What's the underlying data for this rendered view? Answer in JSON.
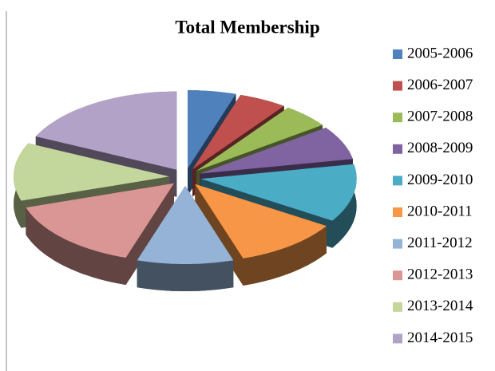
{
  "chart_data": {
    "type": "pie",
    "title": "Total Membership",
    "categories": [
      "2005-2006",
      "2006-2007",
      "2007-2008",
      "2008-2009",
      "2009-2010",
      "2010-2011",
      "2011-2012",
      "2012-2013",
      "2013-2014",
      "2014-2015"
    ],
    "values": [
      5,
      5,
      5,
      7,
      12,
      11,
      10,
      15,
      12,
      18
    ],
    "colors": [
      "#4f81bd",
      "#c0504d",
      "#9bbb59",
      "#8064a2",
      "#4bacc6",
      "#f79646",
      "#95b3d7",
      "#d99694",
      "#c3d69b",
      "#b3a2c7"
    ],
    "legend": "right"
  }
}
